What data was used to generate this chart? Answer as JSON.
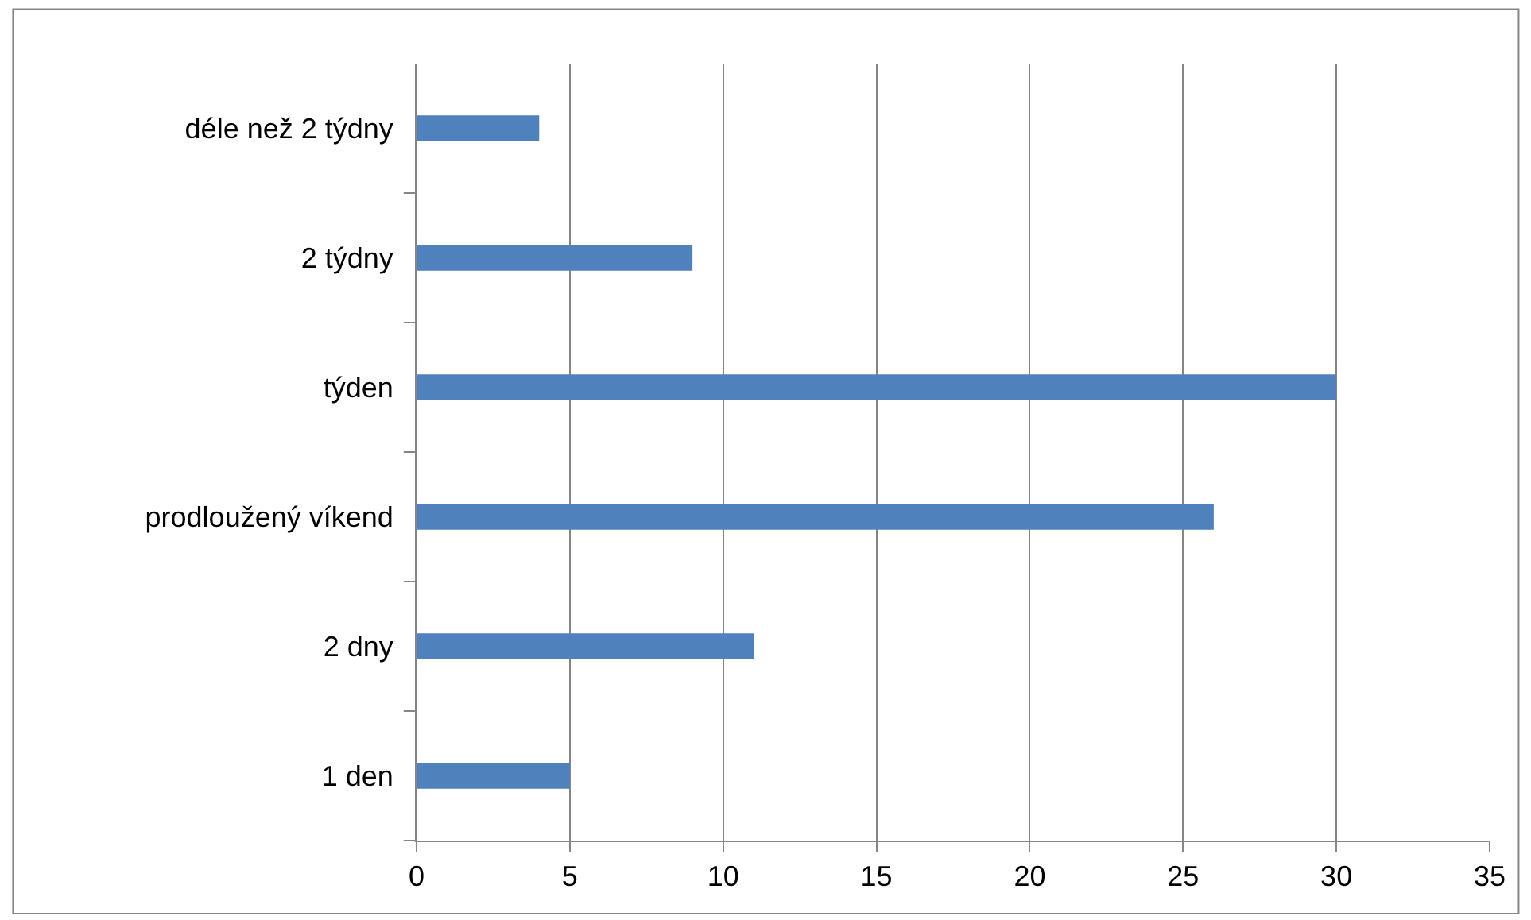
{
  "chart_data": {
    "type": "bar",
    "orientation": "horizontal",
    "categories": [
      "déle než 2 týdny",
      "2 týdny",
      "týden",
      "prodloužený víkend",
      "2 dny",
      "1 den"
    ],
    "values": [
      4,
      9,
      30,
      26,
      11,
      5
    ],
    "color": "#4f81bd",
    "xlim": [
      0,
      35
    ],
    "xticks": [
      0,
      5,
      10,
      15,
      20,
      25,
      30,
      35
    ],
    "grid": "x"
  }
}
